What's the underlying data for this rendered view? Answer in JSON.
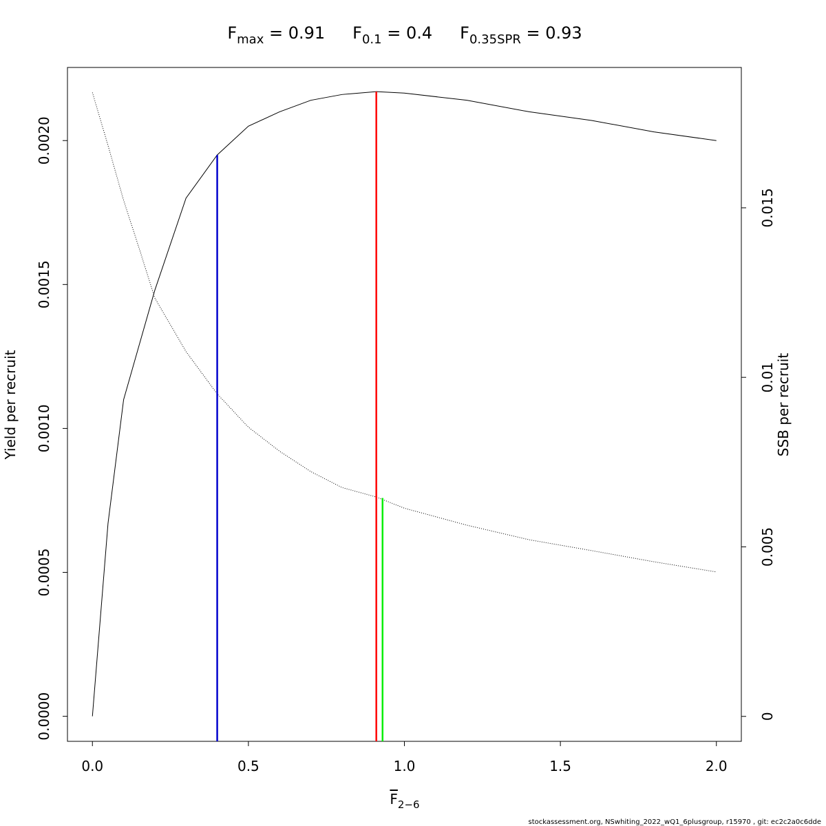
{
  "chart_data": {
    "type": "line",
    "title": [
      {
        "main": "F",
        "sub": "max",
        "rest": " = 0.91"
      },
      {
        "main": "F",
        "sub": "0.1",
        "rest": " = 0.4"
      },
      {
        "main": "F",
        "sub": "0.35SPR",
        "rest": " = 0.93"
      }
    ],
    "x_label": {
      "main": "F",
      "sub": "2−6"
    },
    "y_label": "Yield per recruit",
    "y2_label": "SSB per recruit",
    "footer": "stockassessment.org, NSwhiting_2022_wQ1_6plusgroup, r15970 , git: ec2c2a0c6dde",
    "x": [
      0,
      0.05,
      0.1,
      0.15,
      0.2,
      0.3,
      0.4,
      0.5,
      0.6,
      0.7,
      0.8,
      0.91,
      1.0,
      1.2,
      1.4,
      1.6,
      1.8,
      2.0
    ],
    "series": [
      {
        "name": "Yield per recruit",
        "color": "#000000",
        "style": "solid",
        "axis": "y",
        "values": [
          0,
          0.00067,
          0.0011,
          0.00129,
          0.00148,
          0.0018,
          0.00195,
          0.00205,
          0.0021,
          0.00214,
          0.00216,
          0.00217,
          0.002165,
          0.00214,
          0.0021,
          0.00207,
          0.00203,
          0.002
        ]
      },
      {
        "name": "SSB per recruit",
        "color": "#000000",
        "style": "dotted",
        "axis": "y2",
        "values": [
          0.0184,
          0.01684,
          0.01522,
          0.0138,
          0.01234,
          0.01076,
          0.00951,
          0.00853,
          0.00782,
          0.00722,
          0.00675,
          0.00647,
          0.00614,
          0.00564,
          0.00521,
          0.00489,
          0.00456,
          0.00426
        ]
      }
    ],
    "reference_lines": [
      {
        "x": 0.91,
        "y": 0.00217,
        "color": "#ff0000",
        "axis": "y"
      },
      {
        "x": 0.4,
        "y": 0.00195,
        "color": "#0000cd",
        "axis": "y"
      },
      {
        "x": 0.93,
        "y": 0.00644,
        "color": "#00ee00",
        "axis": "y2"
      }
    ],
    "xlim": [
      -0.08,
      2.08
    ],
    "xticks": [
      {
        "value": 0,
        "label": "0.0"
      },
      {
        "value": 0.5,
        "label": "0.5"
      },
      {
        "value": 1,
        "label": "1.0"
      },
      {
        "value": 1.5,
        "label": "1.5"
      },
      {
        "value": 2,
        "label": "2.0"
      }
    ],
    "ylim": [
      -8.7e-05,
      0.002254
    ],
    "yticks": [
      {
        "value": 0,
        "label": "0.0000"
      },
      {
        "value": 0.0005,
        "label": "0.0005"
      },
      {
        "value": 0.001,
        "label": "0.0010"
      },
      {
        "value": 0.0015,
        "label": "0.0015"
      },
      {
        "value": 0.002,
        "label": "0.0020"
      }
    ],
    "y2lim": [
      -0.000736,
      0.01914
    ],
    "y2ticks": [
      0,
      0.005,
      0.01,
      0.015
    ]
  }
}
